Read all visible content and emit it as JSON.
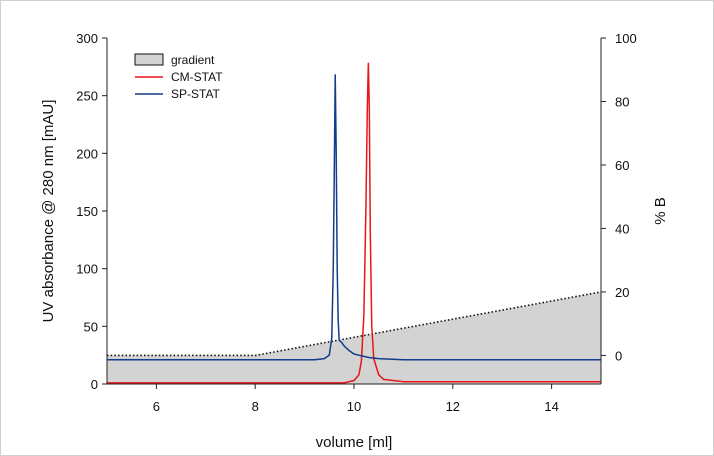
{
  "chart_data": {
    "type": "line",
    "xlabel": "volume [ml]",
    "ylabel": "UV absorbance @ 280 nm [mAU]",
    "y2label": "% B",
    "xlim": [
      5,
      15
    ],
    "ylim": [
      0,
      300
    ],
    "y2lim": [
      -9,
      100
    ],
    "xticks": [
      6,
      8,
      10,
      12,
      14
    ],
    "yticks": [
      0,
      50,
      100,
      150,
      200,
      250,
      300
    ],
    "y2ticks": [
      0,
      20,
      40,
      60,
      80,
      100
    ],
    "legend_position": "top-left",
    "series": [
      {
        "name": "gradient",
        "axis": "right",
        "style": "dotted-fill",
        "color": "#d3d3d3",
        "x": [
          5,
          8,
          15
        ],
        "y": [
          0,
          0,
          20
        ]
      },
      {
        "name": "CM-STAT",
        "axis": "left",
        "color": "#e8141a",
        "x": [
          5,
          9.8,
          10.0,
          10.1,
          10.15,
          10.2,
          10.24,
          10.27,
          10.29,
          10.31,
          10.33,
          10.36,
          10.4,
          10.45,
          10.5,
          10.6,
          11,
          15
        ],
        "y": [
          1,
          1,
          3,
          8,
          20,
          60,
          150,
          240,
          278,
          240,
          130,
          50,
          22,
          15,
          8,
          4,
          2,
          2
        ]
      },
      {
        "name": "SP-STAT",
        "axis": "left",
        "color": "#123c8c",
        "x": [
          5,
          9.2,
          9.4,
          9.5,
          9.55,
          9.58,
          9.6,
          9.62,
          9.64,
          9.66,
          9.68,
          9.7,
          9.75,
          9.8,
          9.9,
          10.0,
          10.1,
          10.3,
          10.5,
          11,
          15
        ],
        "y": [
          21,
          21,
          22,
          25,
          40,
          100,
          180,
          268,
          200,
          100,
          55,
          38,
          36,
          33,
          29,
          26,
          25,
          23,
          22,
          21,
          21
        ]
      }
    ]
  }
}
